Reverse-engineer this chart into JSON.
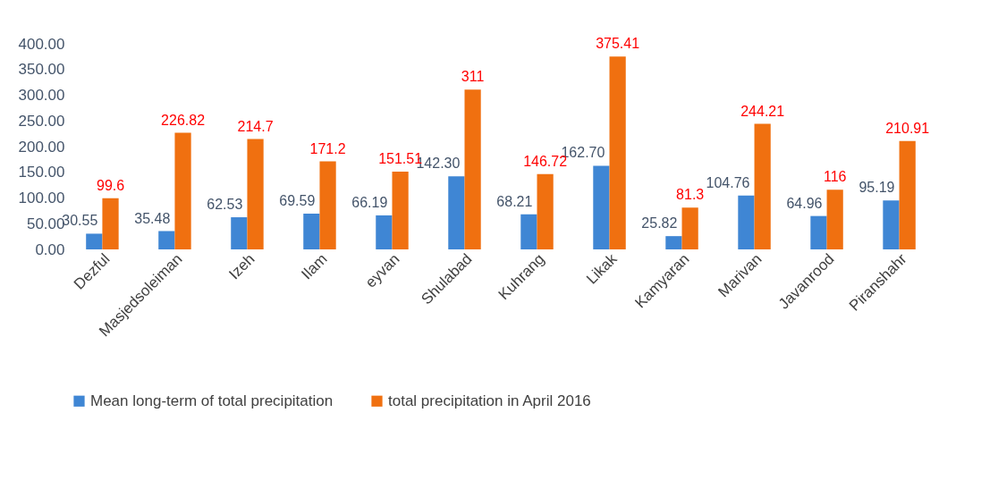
{
  "chart_data": {
    "type": "bar",
    "categories": [
      "Dezful",
      "Masjedsoleiman",
      "Izeh",
      "Ilam",
      "eyvan",
      "Shulabad",
      "Kuhrang",
      "Likak",
      "Kamyaran",
      "Marivan",
      "Javanrood",
      "Piranshahr"
    ],
    "series": [
      {
        "name": "Mean long-term of total precipitation",
        "color": "#3f86d4",
        "values": [
          30.55,
          35.48,
          62.53,
          69.59,
          66.19,
          142.3,
          68.21,
          162.7,
          25.82,
          104.76,
          64.96,
          95.19
        ],
        "value_labels": [
          "30.55",
          "35.48",
          "62.53",
          "69.59",
          "66.19",
          "142.30",
          "68.21",
          "162.70",
          "25.82",
          "104.76",
          "64.96",
          "95.19"
        ]
      },
      {
        "name": "total precipitation in April 2016",
        "color": "#f07010",
        "values": [
          99.6,
          226.82,
          214.7,
          171.2,
          151.51,
          311,
          146.72,
          375.41,
          81.3,
          244.21,
          116,
          210.91
        ],
        "value_labels": [
          "99.6",
          "226.82",
          "214.7",
          "171.2",
          "151.51",
          "311",
          "146.72",
          "375.41",
          "81.3",
          "244.21",
          "116",
          "210.91"
        ]
      }
    ],
    "ylim": [
      0,
      400
    ],
    "yticks": [
      {
        "value": 0,
        "label": "0.00"
      },
      {
        "value": 50,
        "label": "50.00"
      },
      {
        "value": 100,
        "label": "100.00"
      },
      {
        "value": 150,
        "label": "150.00"
      },
      {
        "value": 200,
        "label": "200.00"
      },
      {
        "value": 250,
        "label": "250.00"
      },
      {
        "value": 300,
        "label": "300.00"
      },
      {
        "value": 350,
        "label": "350.00"
      },
      {
        "value": 400,
        "label": "400.00"
      }
    ],
    "grid": false,
    "legend": "bottom"
  }
}
